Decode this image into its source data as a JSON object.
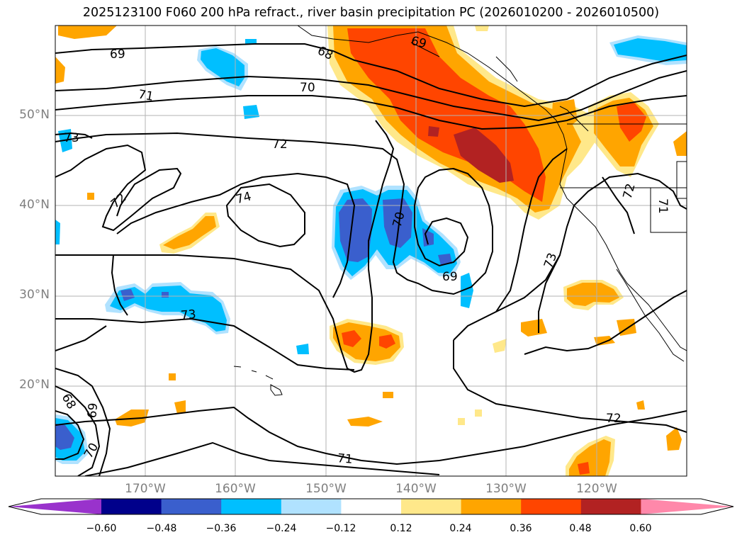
{
  "title": "2025123100 F060 200 hPa refract., river basin precipitation PC (2026010200 - 2026010500)",
  "map": {
    "lon_range": [
      -180,
      -110
    ],
    "lat_range": [
      10,
      60
    ],
    "lat_ticks": [
      "20°N",
      "30°N",
      "40°N",
      "50°N"
    ],
    "lon_ticks": [
      "170°W",
      "160°W",
      "150°W",
      "140°W",
      "130°W",
      "120°W"
    ],
    "grid": true
  },
  "contours": {
    "line_color": "#000000",
    "labels": [
      "69",
      "68",
      "69",
      "70",
      "71",
      "73",
      "72",
      "72",
      "74",
      "70",
      "69",
      "73",
      "73",
      "72",
      "71",
      "72",
      "71",
      "68",
      "69",
      "70"
    ]
  },
  "colorbar": {
    "ticks": [
      "−0.60",
      "−0.48",
      "−0.36",
      "−0.24",
      "−0.12",
      "0.12",
      "0.24",
      "0.36",
      "0.48",
      "0.60"
    ],
    "colors": [
      "#9932cc",
      "#00008b",
      "#3a5fcd",
      "#00bfff",
      "#b0e2ff",
      "#ffffff",
      "#ffe88a",
      "#ffa500",
      "#ff4500",
      "#b22222",
      "#ff88aa"
    ]
  }
}
